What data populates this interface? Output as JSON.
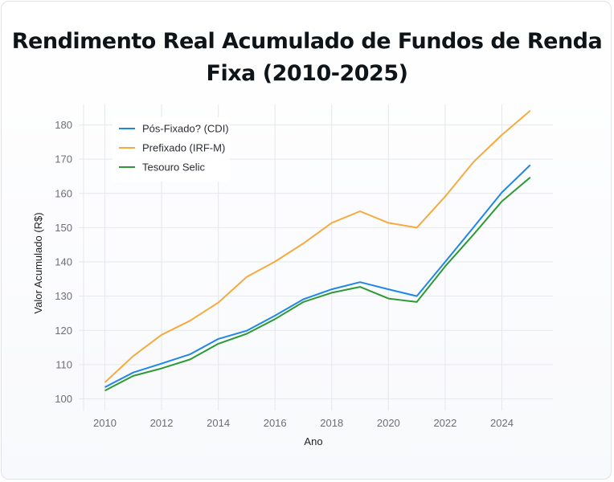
{
  "chart_data": {
    "type": "line",
    "title": "Rendimento Real Acumulado de Fundos de Renda Fixa (2010-2025)",
    "title_lines": [
      "Rendimento Real Acumulado de Fundos de Renda",
      "Fixa (2010-2025)"
    ],
    "xlabel": "Ano",
    "ylabel": "Valor Acumulado (R$)",
    "x": [
      2010,
      2011,
      2012,
      2013,
      2014,
      2015,
      2016,
      2017,
      2018,
      2019,
      2020,
      2021,
      2022,
      2023,
      2024,
      2025
    ],
    "xlim": [
      2009.25,
      2025.8
    ],
    "ylim": [
      98,
      186
    ],
    "x_ticks": [
      2010,
      2012,
      2014,
      2016,
      2018,
      2020,
      2022,
      2024
    ],
    "y_ticks": [
      100,
      110,
      120,
      130,
      140,
      150,
      160,
      170,
      180
    ],
    "grid": true,
    "legend_position": "top-left",
    "series": [
      {
        "name": "Pós-Fixado? (CDI)",
        "color": "#1f87e8",
        "values": [
          103.4,
          107.7,
          110.3,
          113.0,
          117.5,
          119.9,
          124.3,
          129.1,
          132.0,
          134.1,
          132.0,
          130.0,
          140.0,
          150.1,
          160.3,
          168.3
        ]
      },
      {
        "name": "Prefixado (IRF-M)",
        "color": "#f5ab3f",
        "values": [
          104.8,
          112.5,
          118.7,
          122.8,
          128.1,
          135.6,
          140.1,
          145.4,
          151.4,
          154.8,
          151.4,
          150.0,
          159.1,
          169.2,
          177.1,
          184.2
        ]
      },
      {
        "name": "Tesouro Selic",
        "color": "#2e9a35",
        "values": [
          102.4,
          106.7,
          108.9,
          111.5,
          116.1,
          119.0,
          123.3,
          128.3,
          131.0,
          132.7,
          129.3,
          128.3,
          138.7,
          148.0,
          157.7,
          164.7
        ]
      }
    ]
  }
}
